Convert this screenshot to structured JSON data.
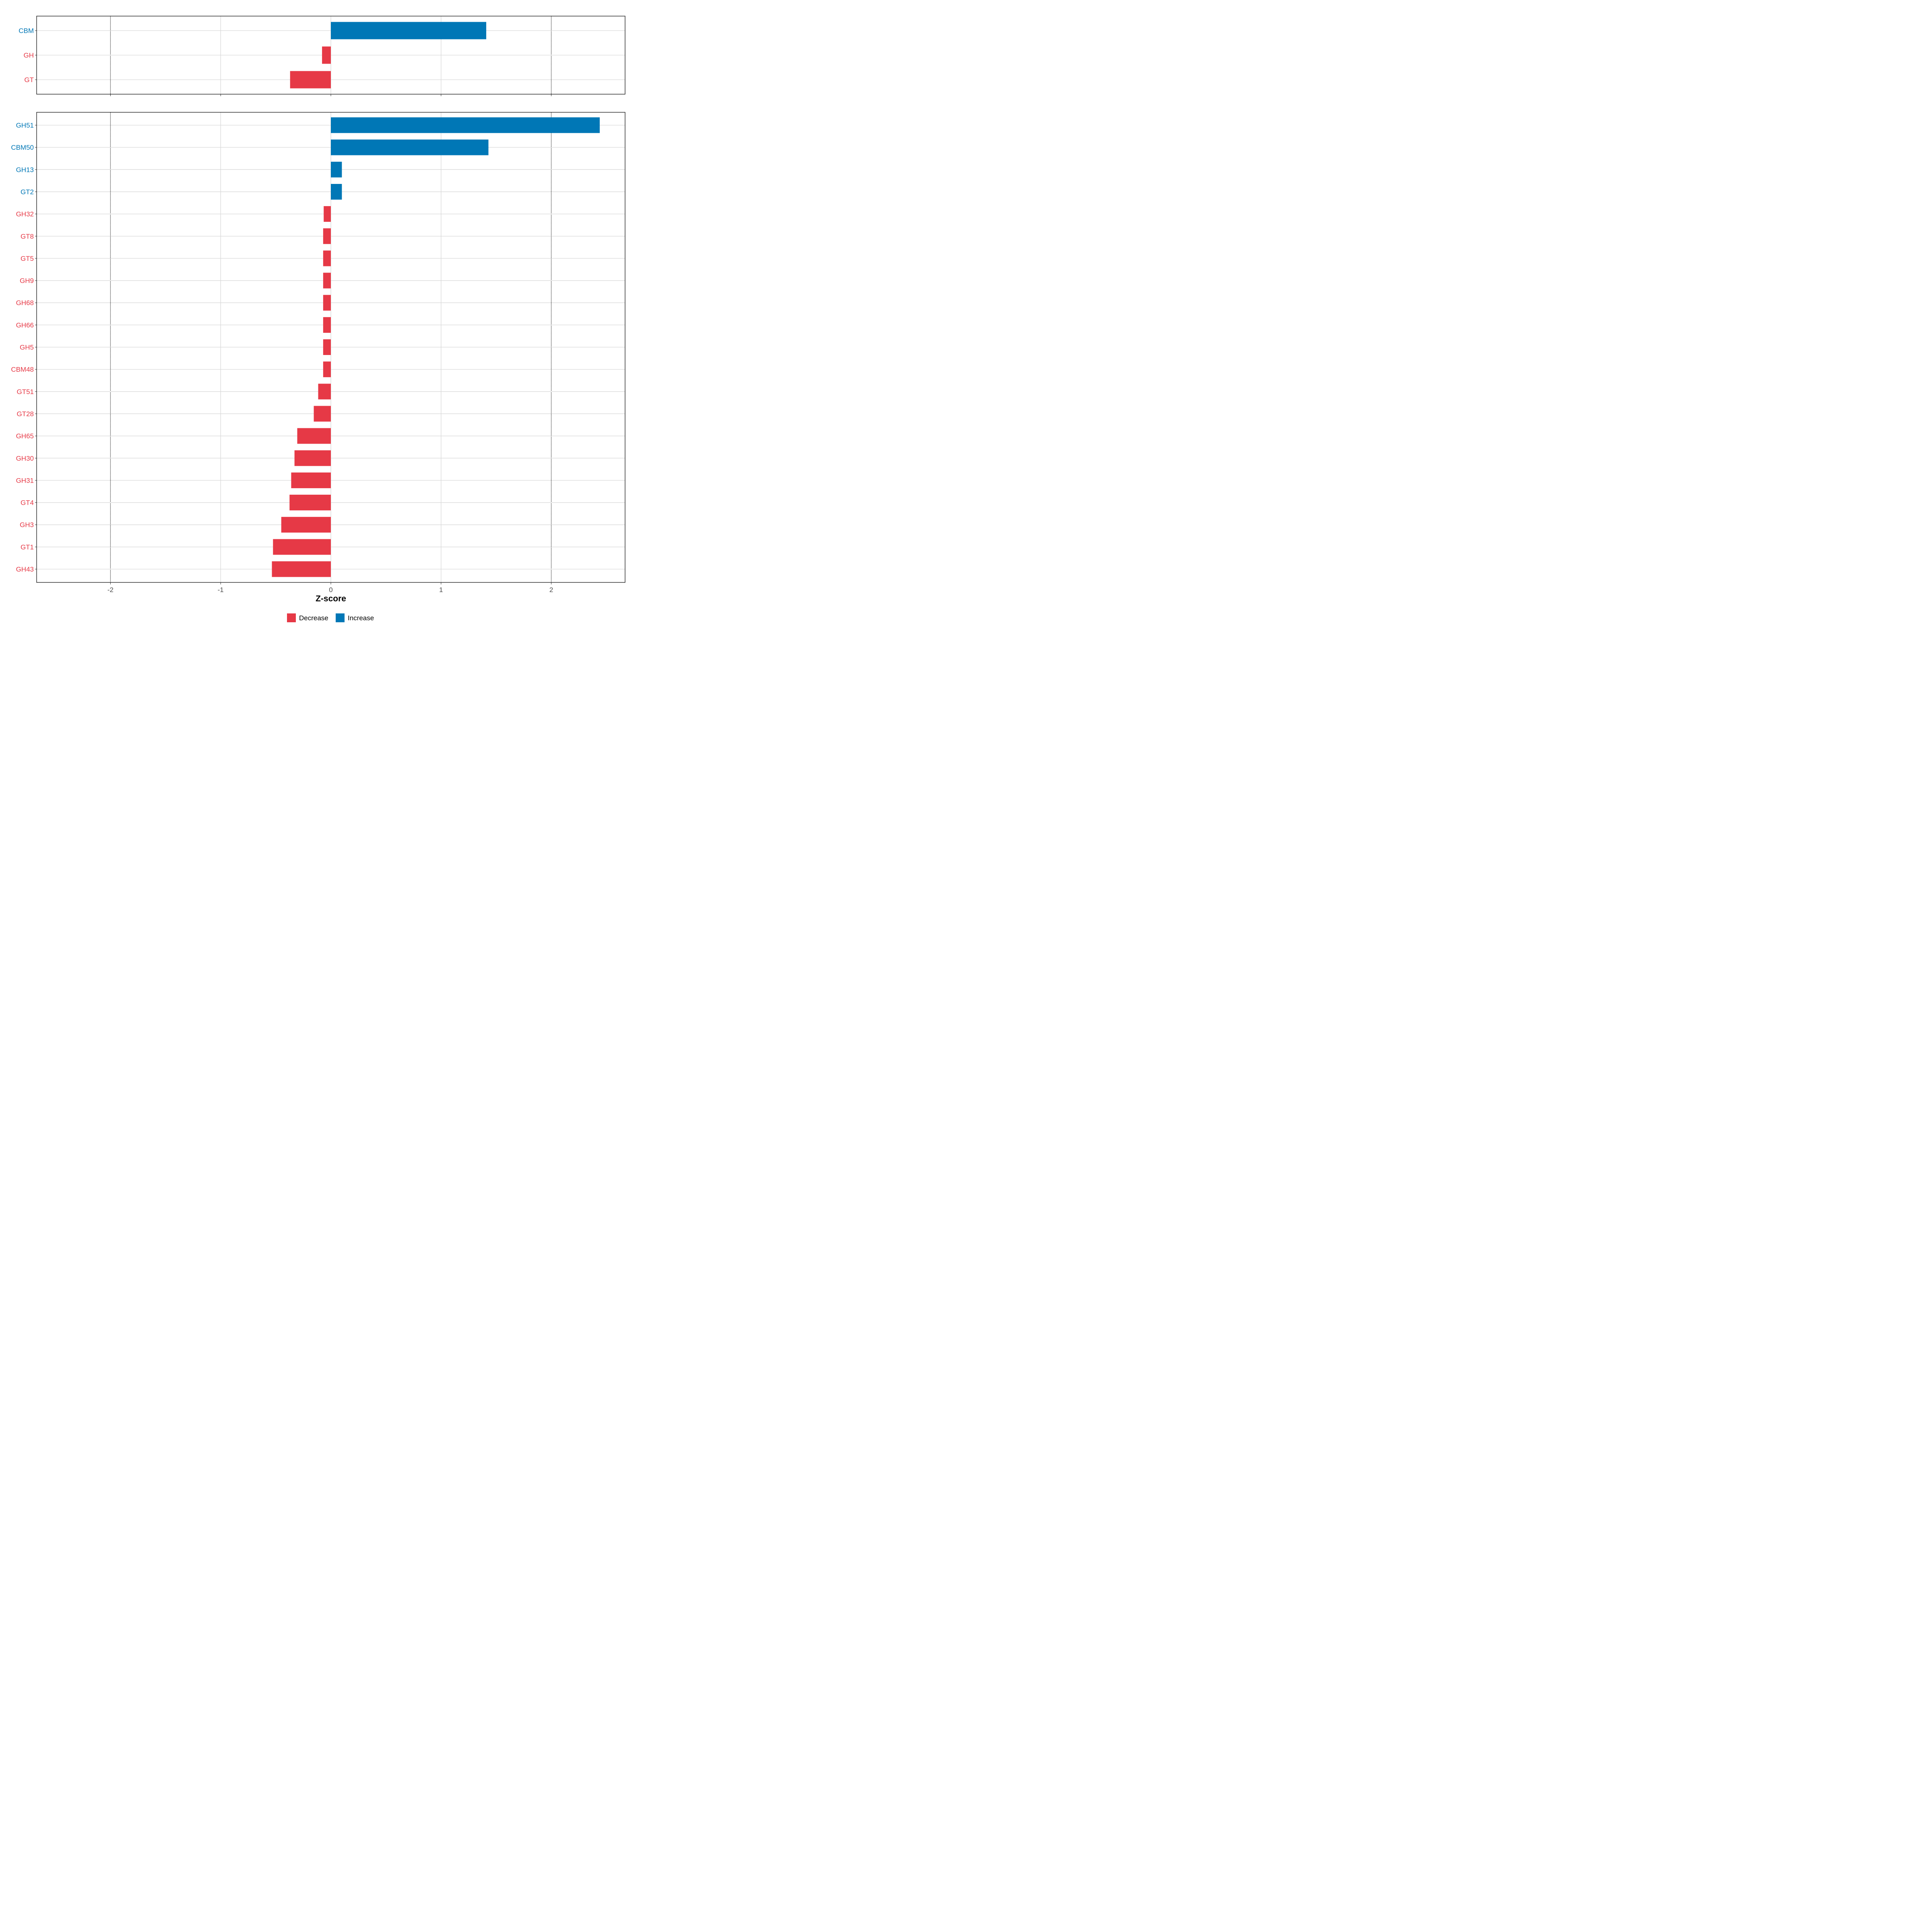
{
  "chart_data": {
    "type": "bar",
    "orientation": "horizontal",
    "xlabel": "Z-score",
    "xlim": [
      -2.67,
      2.67
    ],
    "xticks": [
      -2,
      -1,
      0,
      1,
      2
    ],
    "xtick_labels": [
      "-2",
      "-1",
      "0",
      "1",
      "2"
    ],
    "reference_lines": [
      -2,
      2
    ],
    "grid": true,
    "legend": {
      "position": "bottom",
      "entries": [
        {
          "label": "Decrease",
          "color": "#E63946"
        },
        {
          "label": "Increase",
          "color": "#0077B6"
        }
      ]
    },
    "colors": {
      "Decrease": "#E63946",
      "Increase": "#0077B6"
    },
    "panels": [
      {
        "categories": [
          "CBM",
          "GH",
          "GT"
        ],
        "values": [
          1.41,
          -0.08,
          -0.37
        ],
        "direction": [
          "Increase",
          "Decrease",
          "Decrease"
        ]
      },
      {
        "categories": [
          "GH51",
          "CBM50",
          "GH13",
          "GT2",
          "GH32",
          "GT8",
          "GT5",
          "GH9",
          "GH68",
          "GH66",
          "GH5",
          "CBM48",
          "GT51",
          "GT28",
          "GH65",
          "GH30",
          "GH31",
          "GT4",
          "GH3",
          "GT1",
          "GH43"
        ],
        "values": [
          2.44,
          1.43,
          0.1,
          0.1,
          -0.065,
          -0.07,
          -0.07,
          -0.07,
          -0.07,
          -0.07,
          -0.07,
          -0.07,
          -0.115,
          -0.155,
          -0.305,
          -0.33,
          -0.36,
          -0.375,
          -0.45,
          -0.525,
          -0.535
        ],
        "direction": [
          "Increase",
          "Increase",
          "Increase",
          "Increase",
          "Decrease",
          "Decrease",
          "Decrease",
          "Decrease",
          "Decrease",
          "Decrease",
          "Decrease",
          "Decrease",
          "Decrease",
          "Decrease",
          "Decrease",
          "Decrease",
          "Decrease",
          "Decrease",
          "Decrease",
          "Decrease",
          "Decrease"
        ]
      }
    ]
  }
}
